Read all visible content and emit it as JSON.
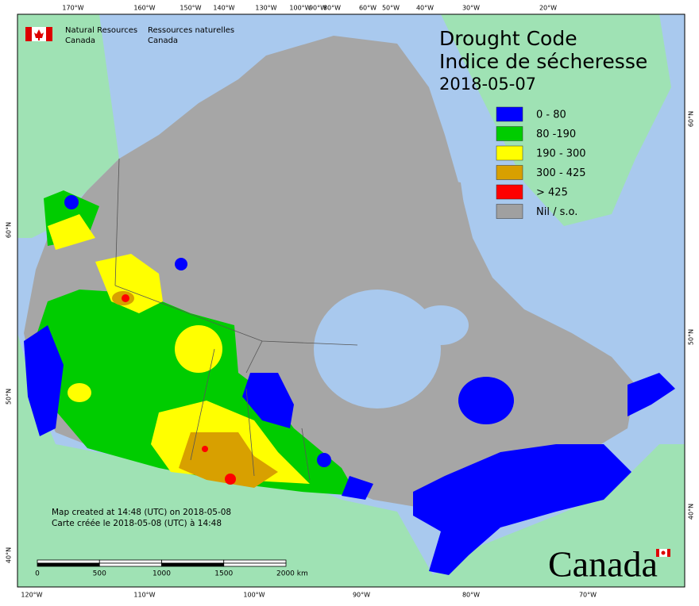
{
  "logo": {
    "en": [
      "Natural Resources",
      "Canada"
    ],
    "fr": [
      "Ressources naturelles",
      "Canada"
    ]
  },
  "title": {
    "lines": [
      "Drought Code",
      "Indice de sécheresse"
    ],
    "date": "2018-05-07"
  },
  "legend": [
    {
      "label": "0 - 80",
      "color": "#0000ff"
    },
    {
      "label": "80 -190",
      "color": "#00cc00"
    },
    {
      "label": "190 - 300",
      "color": "#ffff00"
    },
    {
      "label": "300 - 425",
      "color": "#d8a000"
    },
    {
      "label": "> 425",
      "color": "#ff0000"
    },
    {
      "label": "Nil / s.o.",
      "color": "#a0a0a0"
    }
  ],
  "graticule": {
    "top": [
      "170°W",
      "160°W",
      "150°W",
      "140°W",
      "130°W",
      "100°W",
      "90°W",
      "80°W",
      "60°W",
      "50°W",
      "40°W",
      "30°W",
      "20°W"
    ],
    "bottom": [
      "120°W",
      "110°W",
      "100°W",
      "90°W",
      "80°W",
      "70°W"
    ],
    "left": [
      "60°N",
      "50°N",
      "40°N"
    ],
    "right": [
      "60°N",
      "50°N",
      "40°N"
    ]
  },
  "notes": [
    "Map created at 14:48 (UTC) on 2018-05-08",
    "Carte créée le 2018-05-08 (UTC) à 14:48"
  ],
  "scale_bar": {
    "ticks": [
      "0",
      "500",
      "1000",
      "1500"
    ],
    "unit_label": "2000 km"
  },
  "wordmark": "Canada"
}
